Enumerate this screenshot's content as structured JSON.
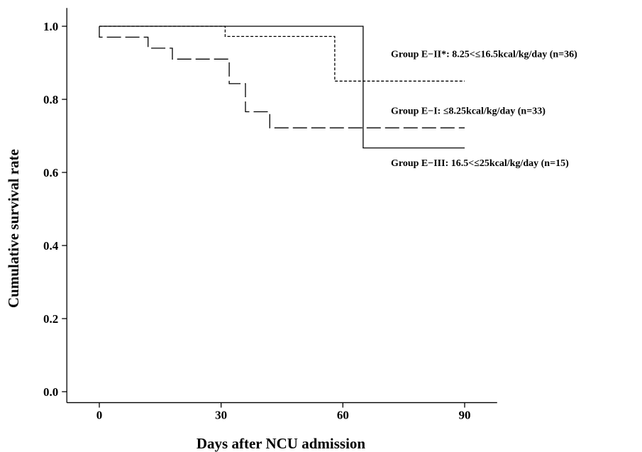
{
  "chart_data": {
    "type": "line",
    "title": "",
    "xlabel": "Days after NCU admission",
    "ylabel": "Cumulative survival  rate",
    "xlim": [
      -8,
      98
    ],
    "ylim": [
      -0.03,
      1.05
    ],
    "xticks": [
      0,
      30,
      60,
      90
    ],
    "xtick_labels": [
      "0",
      "30",
      "60",
      "90"
    ],
    "yticks": [
      0.0,
      0.2,
      0.4,
      0.6,
      0.8,
      1.0
    ],
    "ytick_labels": [
      "0.0",
      "0.2",
      "0.4",
      "0.6",
      "0.8",
      "1.0"
    ],
    "grid": false,
    "legend": "direct-labels-right",
    "series": [
      {
        "name": "Group E−II*: 8.25<≤16.5kcal/kg/day (n=36)",
        "style": "short-dash",
        "label_y": 0.925,
        "x": [
          0,
          31,
          31,
          58,
          58,
          90
        ],
        "y": [
          1.0,
          1.0,
          0.972,
          0.972,
          0.85,
          0.85
        ]
      },
      {
        "name": "Group E−I: ≤8.25kcal/kg/day (n=33)",
        "style": "long-dash",
        "label_y": 0.77,
        "x": [
          0,
          0,
          12,
          12,
          18,
          18,
          32,
          32,
          36,
          36,
          42,
          42,
          90
        ],
        "y": [
          1.0,
          0.97,
          0.97,
          0.94,
          0.94,
          0.91,
          0.91,
          0.843,
          0.843,
          0.766,
          0.766,
          0.722,
          0.722
        ]
      },
      {
        "name": "Group E−III: 16.5<≤25kcal/kg/day (n=15)",
        "style": "solid",
        "label_y": 0.627,
        "x": [
          0,
          65,
          65,
          90
        ],
        "y": [
          1.0,
          1.0,
          0.667,
          0.667
        ]
      }
    ]
  }
}
